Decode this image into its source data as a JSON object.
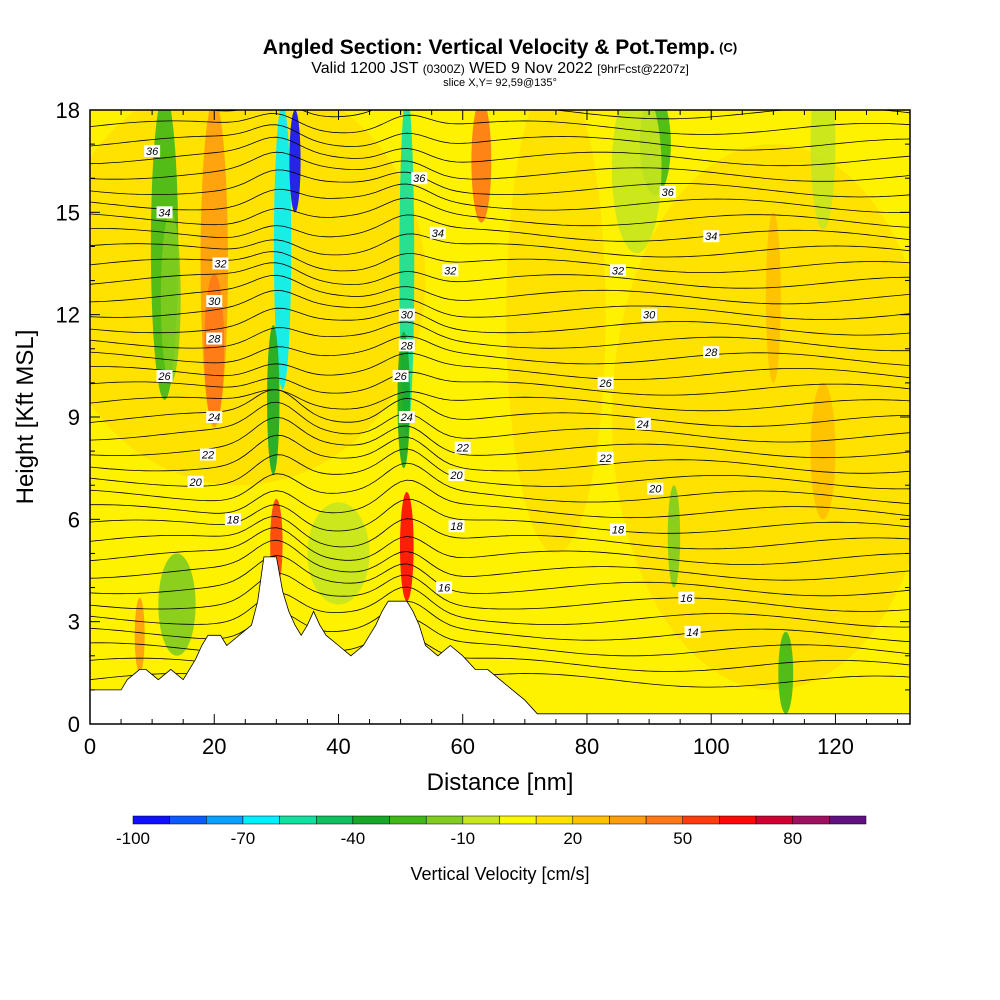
{
  "header": {
    "title": "Angled Section: Vertical Velocity & Pot.Temp.",
    "title_mark": "(C)",
    "valid_label": "Valid 1200 JST",
    "valid_utc": "(0300Z)",
    "valid_date": "WED 9 Nov 2022",
    "forecast": "[9hrFcst@2207z]",
    "slice": "slice X,Y= 92,59@135°"
  },
  "chart_data": {
    "type": "heatmap",
    "xlabel": "Distance [nm]",
    "ylabel": "Height [Kft MSL]",
    "xlim": [
      0,
      132
    ],
    "ylim": [
      0,
      18
    ],
    "xticks": [
      0,
      20,
      40,
      60,
      80,
      100,
      120
    ],
    "yticks": [
      0,
      3,
      6,
      9,
      12,
      15,
      18
    ],
    "field": "Vertical Velocity",
    "colorbar": {
      "label": "Vertical Velocity [cm/s]",
      "tick_labels": [
        "-100",
        "-70",
        "-40",
        "-10",
        "20",
        "50",
        "80"
      ],
      "tick_values": [
        -100,
        -70,
        -40,
        -10,
        20,
        50,
        80
      ],
      "bins": [
        -100,
        -90,
        -80,
        -70,
        -60,
        -50,
        -40,
        -30,
        -20,
        -10,
        0,
        10,
        20,
        30,
        40,
        50,
        60,
        70,
        80,
        90
      ],
      "colors": [
        "#1010ff",
        "#0b5bff",
        "#0aa0ff",
        "#00f0ff",
        "#10e0a0",
        "#10c060",
        "#18a828",
        "#40b818",
        "#80cc20",
        "#c8e620",
        "#f8f800",
        "#ffe000",
        "#ffc000",
        "#ff9c10",
        "#ff7818",
        "#ff3c10",
        "#ff0808",
        "#d00030",
        "#a01060",
        "#601080"
      ]
    },
    "terrain_kft": [
      [
        0,
        1.0
      ],
      [
        5,
        1.0
      ],
      [
        6,
        1.3
      ],
      [
        8,
        1.6
      ],
      [
        9,
        1.6
      ],
      [
        11,
        1.3
      ],
      [
        13,
        1.6
      ],
      [
        15,
        1.3
      ],
      [
        16,
        1.6
      ],
      [
        17,
        1.9
      ],
      [
        18,
        2.3
      ],
      [
        19,
        2.6
      ],
      [
        21,
        2.6
      ],
      [
        22,
        2.3
      ],
      [
        24,
        2.6
      ],
      [
        26,
        2.9
      ],
      [
        27,
        3.6
      ],
      [
        28,
        4.9
      ],
      [
        30,
        4.9
      ],
      [
        31,
        3.9
      ],
      [
        32,
        3.3
      ],
      [
        33,
        2.9
      ],
      [
        34,
        2.6
      ],
      [
        35,
        2.9
      ],
      [
        36,
        3.3
      ],
      [
        37,
        2.9
      ],
      [
        38,
        2.6
      ],
      [
        40,
        2.3
      ],
      [
        42,
        2.0
      ],
      [
        44,
        2.3
      ],
      [
        45,
        2.6
      ],
      [
        46,
        2.9
      ],
      [
        47,
        3.3
      ],
      [
        48,
        3.6
      ],
      [
        51,
        3.6
      ],
      [
        52,
        3.3
      ],
      [
        53,
        2.9
      ],
      [
        54,
        2.3
      ],
      [
        56,
        2.0
      ],
      [
        58,
        2.3
      ],
      [
        60,
        2.0
      ],
      [
        62,
        1.6
      ],
      [
        64,
        1.6
      ],
      [
        66,
        1.3
      ],
      [
        68,
        1.0
      ],
      [
        70,
        0.7
      ],
      [
        72,
        0.3
      ],
      [
        132,
        0.3
      ]
    ],
    "theta_labels": [
      {
        "value": "36",
        "x": 10,
        "y": 16.8
      },
      {
        "value": "34",
        "x": 12,
        "y": 15.0
      },
      {
        "value": "32",
        "x": 21,
        "y": 13.5
      },
      {
        "value": "30",
        "x": 20,
        "y": 12.4
      },
      {
        "value": "28",
        "x": 20,
        "y": 11.3
      },
      {
        "value": "26",
        "x": 12,
        "y": 10.2
      },
      {
        "value": "24",
        "x": 20,
        "y": 9.0
      },
      {
        "value": "22",
        "x": 19,
        "y": 7.9
      },
      {
        "value": "20",
        "x": 17,
        "y": 7.1
      },
      {
        "value": "18",
        "x": 23,
        "y": 6.0
      },
      {
        "value": "36",
        "x": 53,
        "y": 16.0
      },
      {
        "value": "34",
        "x": 56,
        "y": 14.4
      },
      {
        "value": "32",
        "x": 58,
        "y": 13.3
      },
      {
        "value": "30",
        "x": 51,
        "y": 12.0
      },
      {
        "value": "28",
        "x": 51,
        "y": 11.1
      },
      {
        "value": "26",
        "x": 50,
        "y": 10.2
      },
      {
        "value": "24",
        "x": 51,
        "y": 9.0
      },
      {
        "value": "22",
        "x": 60,
        "y": 8.1
      },
      {
        "value": "20",
        "x": 59,
        "y": 7.3
      },
      {
        "value": "18",
        "x": 59,
        "y": 5.8
      },
      {
        "value": "16",
        "x": 57,
        "y": 4.0
      },
      {
        "value": "36",
        "x": 93,
        "y": 15.6
      },
      {
        "value": "34",
        "x": 100,
        "y": 14.3
      },
      {
        "value": "32",
        "x": 85,
        "y": 13.3
      },
      {
        "value": "30",
        "x": 90,
        "y": 12.0
      },
      {
        "value": "28",
        "x": 100,
        "y": 10.9
      },
      {
        "value": "26",
        "x": 83,
        "y": 10.0
      },
      {
        "value": "24",
        "x": 89,
        "y": 8.8
      },
      {
        "value": "22",
        "x": 83,
        "y": 7.8
      },
      {
        "value": "20",
        "x": 91,
        "y": 6.9
      },
      {
        "value": "18",
        "x": 85,
        "y": 5.7
      },
      {
        "value": "16",
        "x": 96,
        "y": 3.7
      },
      {
        "value": "14",
        "x": 97,
        "y": 2.7
      }
    ]
  }
}
